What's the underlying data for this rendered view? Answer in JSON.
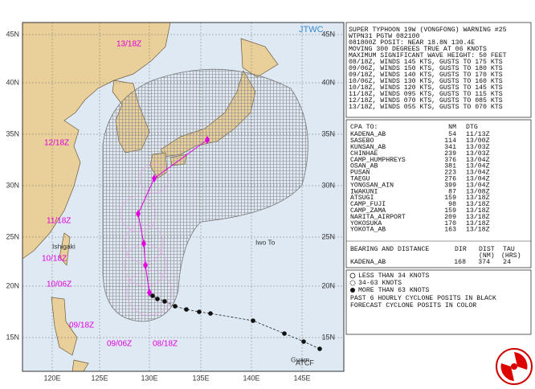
{
  "map": {
    "lat_labels": [
      "45N",
      "40N",
      "35N",
      "30N",
      "25N",
      "20N",
      "15N"
    ],
    "lon_labels": [
      "120E",
      "125E",
      "130E",
      "135E",
      "140E",
      "145E"
    ],
    "agency": "JTWC",
    "atcf": "ATCF",
    "places": [
      "Ishigaki",
      "Iwo To",
      "Guam"
    ],
    "forecast_times": [
      "13/18Z",
      "12/18Z",
      "11/18Z",
      "10/18Z",
      "10/06Z",
      "09/18Z",
      "09/06Z",
      "08/18Z"
    ]
  },
  "warning": {
    "lines": [
      "SUPER TYPHOON 19W (VONGFONG) WARNING #25",
      "WTPN31 PGTW 082100",
      "081800Z POSIT: NEAR 18.8N 130.4E",
      "MOVING 300 DEGREES TRUE AT 06 KNOTS",
      "MAXIMUM SIGNIFICANT WAVE HEIGHT: 50 FEET",
      "08/18Z, WINDS 145 KTS, GUSTS TO 175 KTS",
      "09/06Z, WINDS 150 KTS, GUSTS TO 180 KTS",
      "09/18Z, WINDS 140 KTS, GUSTS TO 170 KTS",
      "10/06Z, WINDS 130 KTS, GUSTS TO 160 KTS",
      "10/18Z, WINDS 120 KTS, GUSTS TO 145 KTS",
      "11/18Z, WINDS 095 KTS, GUSTS TO 115 KTS",
      "12/18Z, WINDS 070 KTS, GUSTS TO 085 KTS",
      "13/18Z, WINDS 055 KTS, GUSTS TO 070 KTS"
    ]
  },
  "cpa": {
    "headers": [
      "CPA TO:",
      "NM",
      "DTG"
    ],
    "rows": [
      [
        "KADENA_AB",
        "54",
        "11/13Z"
      ],
      [
        "SASEBO",
        "114",
        "13/00Z"
      ],
      [
        "KUNSAN_AB",
        "341",
        "13/03Z"
      ],
      [
        "CHINHAE",
        "239",
        "13/03Z"
      ],
      [
        "CAMP_HUMPHREYS",
        "376",
        "13/04Z"
      ],
      [
        "OSAN_AB",
        "381",
        "13/04Z"
      ],
      [
        "PUSAN",
        "223",
        "13/04Z"
      ],
      [
        "TAEGU",
        "276",
        "13/04Z"
      ],
      [
        "YONGSAN_AIN",
        "399",
        "13/04Z"
      ],
      [
        "IWAKUNI",
        "87",
        "13/08Z"
      ],
      [
        "ATSUGI",
        "159",
        "13/18Z"
      ],
      [
        "CAMP_FUJI",
        "98",
        "13/18Z"
      ],
      [
        "CAMP_ZAMA",
        "159",
        "13/18Z"
      ],
      [
        "NARITA_AIRPORT",
        "209",
        "13/18Z"
      ],
      [
        "YOKOSUKA",
        "170",
        "13/18Z"
      ],
      [
        "YOKOTA_AB",
        "163",
        "13/18Z"
      ]
    ]
  },
  "bearing": {
    "headers": [
      "BEARING AND DISTANCE",
      "DIR",
      "DIST",
      "TAU"
    ],
    "subheaders": [
      "(NM)",
      "(HRS)"
    ],
    "row": [
      "KADENA_AB",
      "168",
      "374",
      "24"
    ]
  },
  "legend": {
    "items": [
      "LESS THAN 34 KNOTS",
      "34-63 KNOTS",
      "MORE THAN 63 KNOTS",
      "PAST 6 HOURLY CYCLONE POSITS IN BLACK",
      "FORECAST CYCLONE POSITS IN COLOR"
    ]
  }
}
